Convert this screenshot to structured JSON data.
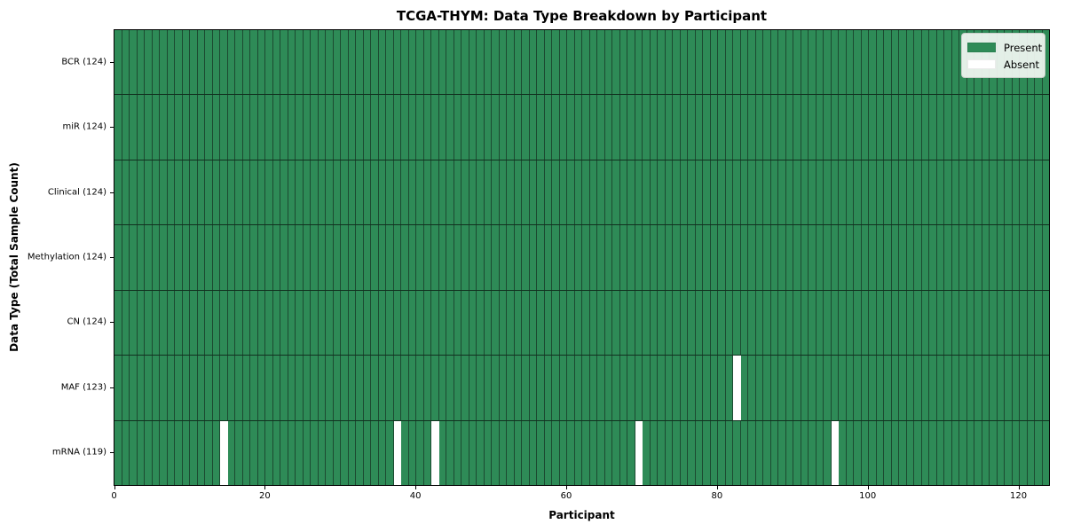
{
  "chart_data": {
    "type": "heatmap",
    "title": "TCGA-THYM: Data Type Breakdown by Participant",
    "xlabel": "Participant",
    "ylabel": "Data Type (Total Sample Count)",
    "n_participants": 124,
    "xlim": [
      0,
      124
    ],
    "x_ticks": [
      0,
      20,
      40,
      60,
      80,
      100,
      120
    ],
    "grid": false,
    "legend_position": "upper right",
    "rows": [
      {
        "data_type": "BCR",
        "label": "BCR (124)",
        "present_count": 124,
        "absent_participants": []
      },
      {
        "data_type": "miR",
        "label": "miR (124)",
        "present_count": 124,
        "absent_participants": []
      },
      {
        "data_type": "Clinical",
        "label": "Clinical (124)",
        "present_count": 124,
        "absent_participants": []
      },
      {
        "data_type": "Methylation",
        "label": "Methylation (124)",
        "present_count": 124,
        "absent_participants": []
      },
      {
        "data_type": "CN",
        "label": "CN (124)",
        "present_count": 124,
        "absent_participants": []
      },
      {
        "data_type": "MAF",
        "label": "MAF (123)",
        "present_count": 123,
        "absent_participants": [
          82
        ]
      },
      {
        "data_type": "mRNA",
        "label": "mRNA (119)",
        "present_count": 119,
        "absent_participants": [
          14,
          37,
          42,
          69,
          95
        ]
      }
    ],
    "legend": [
      {
        "label": "Present",
        "color": "#2e8b57"
      },
      {
        "label": "Absent",
        "color": "#ffffff"
      }
    ],
    "colors": {
      "present": "#2e8b57",
      "absent": "#ffffff",
      "edge": "#1c4a31"
    }
  }
}
